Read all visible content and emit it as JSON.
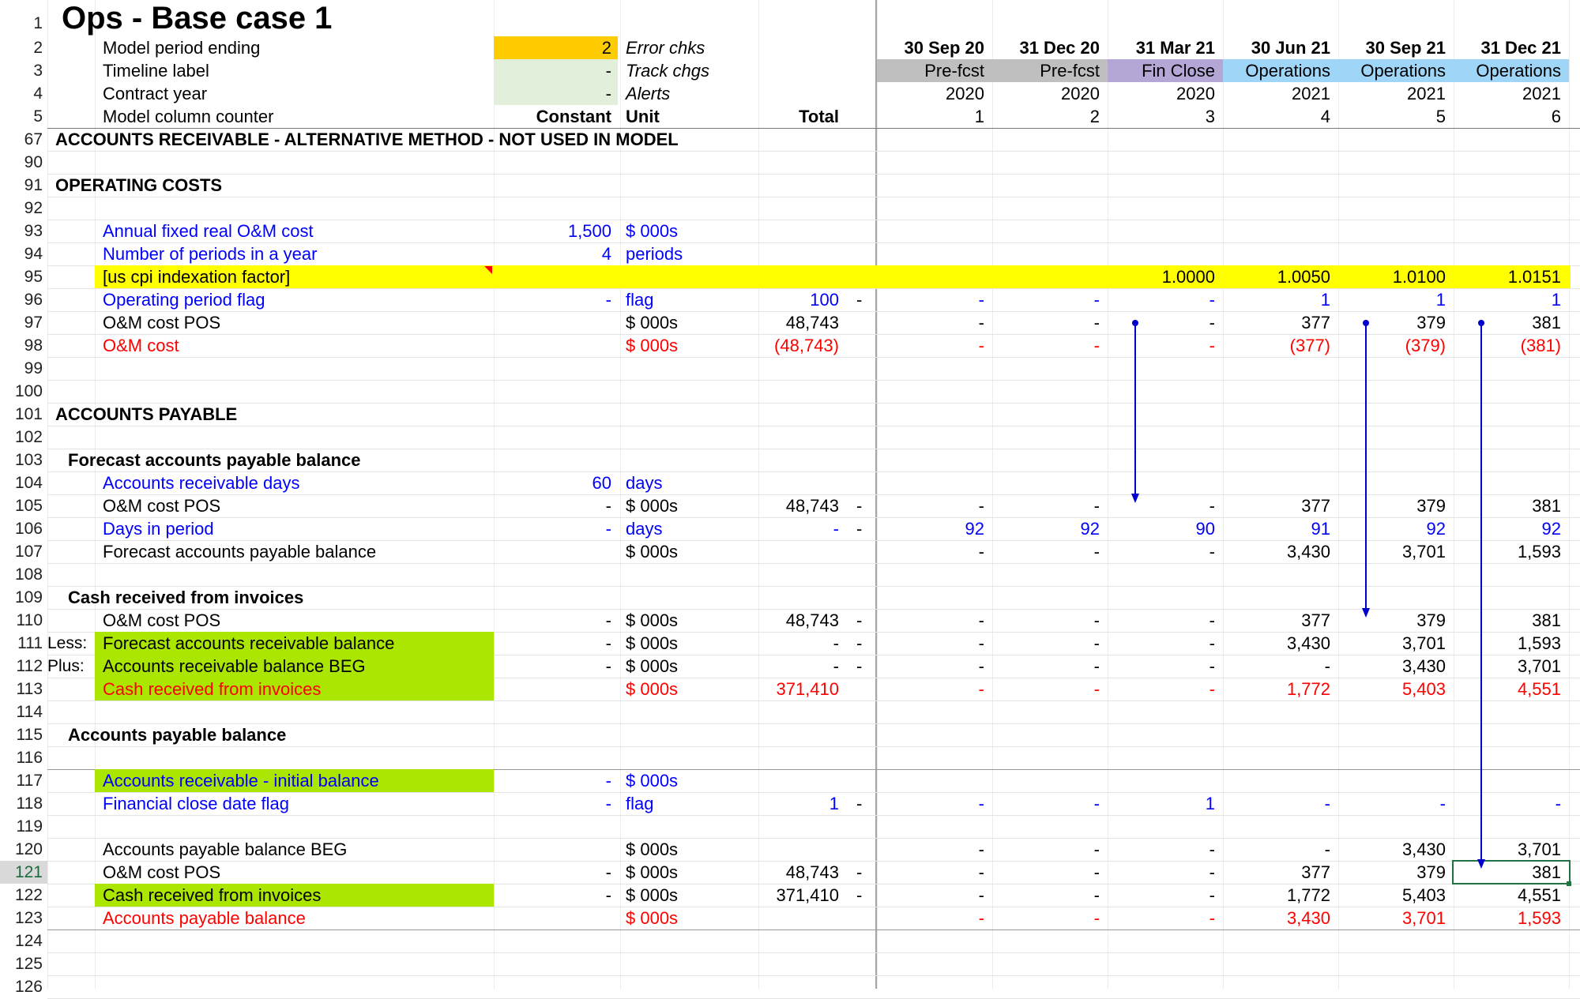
{
  "sheet_title": "Ops - Base case 1",
  "header": {
    "labels": [
      {
        "rownum": "2",
        "label": "Model period ending",
        "value": "2",
        "tag": "Error chks"
      },
      {
        "rownum": "3",
        "label": "Timeline label",
        "value": "-",
        "tag": "Track chgs"
      },
      {
        "rownum": "4",
        "label": "Contract year",
        "value": "-",
        "tag": "Alerts"
      },
      {
        "rownum": "5",
        "label": "Model column counter",
        "value": "Constant",
        "tag": "Unit",
        "total": "Total"
      }
    ],
    "dates": [
      "30 Sep 20",
      "31 Dec 20",
      "31 Mar 21",
      "30 Jun 21",
      "30 Sep 21",
      "31 Dec 21"
    ],
    "phases": [
      "Pre-fcst",
      "Pre-fcst",
      "Fin Close",
      "Operations",
      "Operations",
      "Operations"
    ],
    "years": [
      "2020",
      "2020",
      "2020",
      "2021",
      "2021",
      "2021"
    ],
    "counters": [
      "1",
      "2",
      "3",
      "4",
      "5",
      "6"
    ],
    "colors": {
      "period_input": "#ffcc00",
      "input_light": "#e2efda",
      "prefcst": "#bfbfbf",
      "finclose": "#b4a7d6",
      "operations": "#9fd5f7",
      "highlight_yellow": "#ffff00",
      "green_fill": "#aae600"
    }
  },
  "rows": [
    {
      "n": "67",
      "label": "ACCOUNTS RECEIVABLE - ALTERNATIVE METHOD - NOT USED IN MODEL",
      "kind": "section"
    },
    {
      "n": "90"
    },
    {
      "n": "91",
      "label": "OPERATING COSTS",
      "kind": "section"
    },
    {
      "n": "92"
    },
    {
      "n": "93",
      "label": "Annual fixed real O&M cost",
      "color": "blue",
      "const": "1,500",
      "unit": "$ 000s"
    },
    {
      "n": "94",
      "label": "Number of periods in a year",
      "color": "blue",
      "const": "4",
      "unit": "periods"
    },
    {
      "n": "95",
      "label": "[us cpi indexation factor]",
      "fill": "yellow",
      "vals": [
        "",
        "",
        "1.0000",
        "1.0050",
        "1.0100",
        "1.0151"
      ]
    },
    {
      "n": "96",
      "label": "Operating period flag",
      "color": "blue",
      "const": "-",
      "unit": "flag",
      "total": "100",
      "dash": "-",
      "vals": [
        "-",
        "-",
        "-",
        "1",
        "1",
        "1"
      ]
    },
    {
      "n": "97",
      "label": "O&M cost POS",
      "unit": "$ 000s",
      "total": "48,743",
      "vals": [
        "-",
        "-",
        "-",
        "377",
        "379",
        "381"
      ]
    },
    {
      "n": "98",
      "label": "O&M cost",
      "color": "red",
      "unit": "$ 000s",
      "total": "(48,743)",
      "vals": [
        "-",
        "-",
        "-",
        "(377)",
        "(379)",
        "(381)"
      ]
    },
    {
      "n": "99"
    },
    {
      "n": "100"
    },
    {
      "n": "101",
      "label": "ACCOUNTS PAYABLE",
      "kind": "section"
    },
    {
      "n": "102"
    },
    {
      "n": "103",
      "label": "Forecast accounts payable balance",
      "kind": "sub"
    },
    {
      "n": "104",
      "label": "Accounts receivable days",
      "color": "blue",
      "const": "60",
      "unit": "days"
    },
    {
      "n": "105",
      "label": "O&M cost POS",
      "const": "-",
      "unit": "$ 000s",
      "total": "48,743",
      "dash": "-",
      "vals": [
        "-",
        "-",
        "-",
        "377",
        "379",
        "381"
      ]
    },
    {
      "n": "106",
      "label": "Days in period",
      "color": "blue",
      "const": "-",
      "unit": "days",
      "total": "-",
      "dash": "-",
      "vals": [
        "92",
        "92",
        "90",
        "91",
        "92",
        "92"
      ]
    },
    {
      "n": "107",
      "label": "Forecast accounts payable balance",
      "unit": "$ 000s",
      "vals": [
        "-",
        "-",
        "-",
        "3,430",
        "3,701",
        "1,593"
      ]
    },
    {
      "n": "108"
    },
    {
      "n": "109",
      "label": "Cash received from invoices",
      "kind": "sub"
    },
    {
      "n": "110",
      "label": "O&M cost POS",
      "const": "-",
      "unit": "$ 000s",
      "total": "48,743",
      "dash": "-",
      "vals": [
        "-",
        "-",
        "-",
        "377",
        "379",
        "381"
      ]
    },
    {
      "n": "111",
      "pre": "Less:",
      "label": "Forecast accounts receivable balance",
      "fill": "green",
      "const": "-",
      "unit": "$ 000s",
      "total": "-",
      "dash": "-",
      "vals": [
        "-",
        "-",
        "-",
        "3,430",
        "3,701",
        "1,593"
      ]
    },
    {
      "n": "112",
      "pre": "Plus:",
      "label": "Accounts receivable balance BEG",
      "fill": "green",
      "const": "-",
      "unit": "$ 000s",
      "total": "-",
      "dash": "-",
      "vals": [
        "-",
        "-",
        "-",
        "-",
        "3,430",
        "3,701"
      ]
    },
    {
      "n": "113",
      "label": "Cash received from invoices",
      "fill": "green",
      "color": "red",
      "unit": "$ 000s",
      "total": "371,410",
      "vals": [
        "-",
        "-",
        "-",
        "1,772",
        "5,403",
        "4,551"
      ]
    },
    {
      "n": "114"
    },
    {
      "n": "115",
      "label": "Accounts payable balance",
      "kind": "sub"
    },
    {
      "n": "116"
    },
    {
      "n": "117",
      "label": "Accounts receivable - initial balance",
      "fill": "green",
      "color": "blue",
      "const": "-",
      "unit": "$ 000s"
    },
    {
      "n": "118",
      "label": "Financial close date flag",
      "color": "blue",
      "const": "-",
      "unit": "flag",
      "total": "1",
      "dash": "-",
      "vals": [
        "-",
        "-",
        "1",
        "-",
        "-",
        "-"
      ]
    },
    {
      "n": "119"
    },
    {
      "n": "120",
      "label": "Accounts payable balance BEG",
      "unit": "$ 000s",
      "vals": [
        "-",
        "-",
        "-",
        "-",
        "3,430",
        "3,701"
      ]
    },
    {
      "n": "121",
      "label": "O&M cost POS",
      "const": "-",
      "unit": "$ 000s",
      "total": "48,743",
      "dash": "-",
      "vals": [
        "-",
        "-",
        "-",
        "377",
        "379",
        "381"
      ],
      "selected": true
    },
    {
      "n": "122",
      "label": "Cash received from invoices",
      "fill": "green",
      "const": "-",
      "unit": "$ 000s",
      "total": "371,410",
      "dash": "-",
      "vals": [
        "-",
        "-",
        "-",
        "1,772",
        "5,403",
        "4,551"
      ]
    },
    {
      "n": "123",
      "label": "Accounts payable balance",
      "color": "red",
      "unit": "$ 000s",
      "vals": [
        "-",
        "-",
        "-",
        "3,430",
        "3,701",
        "1,593"
      ]
    },
    {
      "n": "124"
    },
    {
      "n": "125"
    },
    {
      "n": "126"
    }
  ]
}
